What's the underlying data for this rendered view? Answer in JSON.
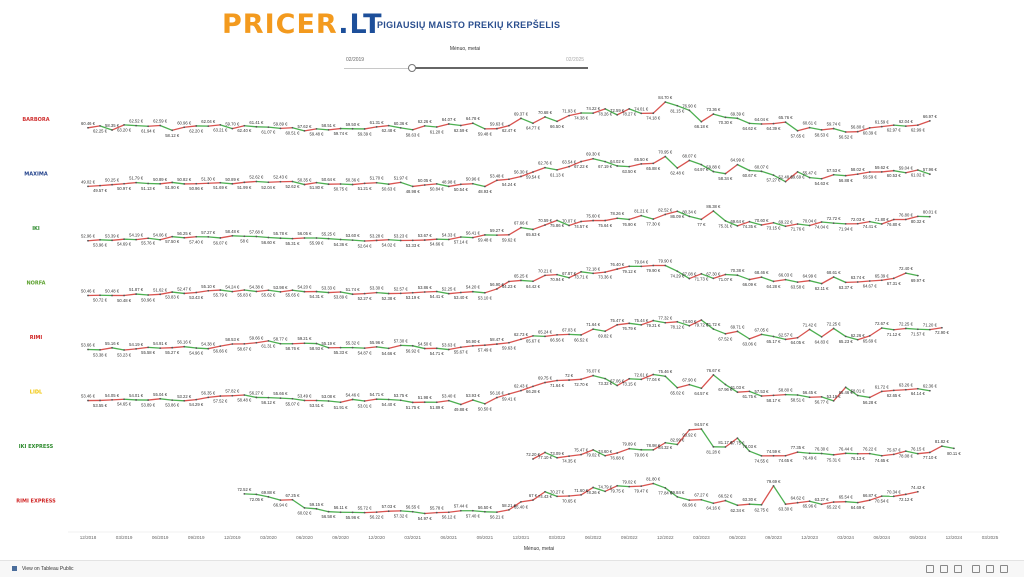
{
  "header": {
    "logo_main": "PRICER",
    "logo_suffix": ".LT",
    "subtitle": "PIGIAUSIŲ MAISTO PREKIŲ KREPŠELIS"
  },
  "filter": {
    "title": "Mėnuo, metai",
    "range_start": "02/2019",
    "range_end": "02/2025",
    "selected_fraction": 0.28
  },
  "footer": {
    "link_text": "View on Tableau Public"
  },
  "chart_data": {
    "type": "line",
    "xlabel": "Mėnuo, metai",
    "x_ticks": [
      "12/2018",
      "03/2019",
      "06/2019",
      "09/2019",
      "12/2019",
      "03/2020",
      "06/2020",
      "09/2020",
      "12/2020",
      "03/2021",
      "06/2021",
      "09/2021",
      "12/2021",
      "03/2022",
      "06/2022",
      "09/2022",
      "12/2022",
      "03/2023",
      "06/2023",
      "09/2023",
      "12/2023",
      "03/2024",
      "06/2024",
      "09/2024",
      "12/2024",
      "03/2025"
    ],
    "x_start": "12/2018",
    "x_end": "03/2025",
    "color_increase": "#d9534f",
    "color_decrease": "#4caf50",
    "series": [
      {
        "name": "BARBORA",
        "label_color": "#d03030",
        "start": "12/2018",
        "values": [
          60.46,
          62.25,
          58.35,
          63.2,
          62.52,
          61.94,
          62.59,
          58.12,
          60.96,
          62.2,
          62.04,
          63.21,
          59.7,
          62.4,
          61.41,
          61.07,
          59.89,
          60.51,
          57.62,
          59.48,
          58.51,
          59.74,
          59.5,
          59.39,
          61.31,
          62.48,
          60.36,
          58.63,
          62.26,
          61.2,
          64.07,
          62.59,
          64.78,
          59.48,
          59.63,
          62.47,
          69.37,
          64.77,
          70.68,
          66.5,
          71.93,
          74.38,
          74.22,
          78.26,
          72.59,
          78.27,
          74.01,
          74.18,
          84.7,
          81.15,
          76.9,
          66.18,
          73.36,
          70.3,
          69.39,
          64.62,
          64.04,
          64.39,
          65.76,
          57.65,
          60.61,
          58.53,
          59.74,
          56.52,
          56.8,
          60.39,
          61.59,
          62.97,
          62.04,
          62.99,
          66.97
        ]
      },
      {
        "name": "MAXIMA",
        "label_color": "#1f3f8a",
        "start": "12/2018",
        "values": [
          49.02,
          49.57,
          50.25,
          50.97,
          51.79,
          51.13,
          50.89,
          51.9,
          50.82,
          50.96,
          51.3,
          51.69,
          50.89,
          51.99,
          52.62,
          52.04,
          52.43,
          52.62,
          50.35,
          51.8,
          50.64,
          50.75,
          50.36,
          51.21,
          51.7,
          50.63,
          51.97,
          48.98,
          50.05,
          50.84,
          48.98,
          50.54,
          50.96,
          48.93,
          53.48,
          54.24,
          56.3,
          59.54,
          62.76,
          61.13,
          63.54,
          67.22,
          69.3,
          67.19,
          64.02,
          63.5,
          65.5,
          65.88,
          70.95,
          62.48,
          68.07,
          64.97,
          59.88,
          58.34,
          64.99,
          60.67,
          60.07,
          57.27,
          52.48,
          59.69,
          55.47,
          54.63,
          57.53,
          56.88,
          58.02,
          59.59,
          59.62,
          60.53,
          59.04,
          61.02,
          57.96
        ]
      },
      {
        "name": "IKI",
        "label_color": "#2e8b2e",
        "start": "12/2018",
        "values": [
          52.96,
          53.96,
          53.39,
          54.69,
          54.19,
          55.76,
          54.06,
          57.5,
          56.25,
          57.4,
          57.27,
          56.07,
          58.48,
          58.0,
          57.68,
          56.6,
          55.78,
          55.31,
          56.05,
          55.99,
          55.25,
          54.36,
          53.6,
          52.64,
          53.28,
          54.02,
          53.23,
          53.33,
          53.67,
          54.66,
          54.33,
          57.14,
          56.41,
          59.48,
          59.27,
          59.62,
          67.66,
          65.63,
          70.59,
          75.86,
          70.07,
          74.57,
          75.6,
          75.64,
          78.26,
          76.9,
          81.21,
          77.3,
          82.52,
          86.09,
          80.34,
          77.0,
          86.38,
          75.31,
          69.64,
          74.35,
          70.6,
          73.15,
          69.22,
          71.76,
          70.04,
          74.04,
          72.72,
          71.94,
          72.03,
          74.41,
          71.8,
          76.8,
          76.8,
          80.32,
          80.01
        ]
      },
      {
        "name": "NORFA",
        "label_color": "#5aa02c",
        "start": "12/2018",
        "values": [
          50.46,
          50.72,
          50.48,
          50.48,
          51.87,
          50.96,
          51.62,
          53.83,
          52.47,
          53.43,
          55.1,
          55.79,
          54.24,
          55.83,
          54.38,
          55.62,
          53.98,
          55.65,
          54.2,
          54.31,
          53.33,
          53.89,
          51.74,
          52.27,
          53.3,
          52.38,
          52.57,
          53.19,
          53.86,
          54.41,
          52.25,
          53.4,
          54.2,
          53.1,
          56.9,
          64.23,
          65.25,
          64.42,
          70.21,
          70.94,
          67.87,
          73.71,
          72.18,
          73.36,
          76.4,
          79.12,
          79.04,
          79.9,
          79.9,
          74.29,
          67.08,
          71.73,
          67.3,
          71.07,
          70.38,
          66.09,
          68.46,
          64.28,
          66.03,
          63.58,
          64.99,
          62.11,
          68.61,
          63.37,
          63.74,
          64.67,
          65.39,
          67.31,
          72.4,
          69.97
        ]
      },
      {
        "name": "RIMI",
        "label_color": "#d02525",
        "start": "12/2018",
        "values": [
          53.66,
          53.38,
          55.16,
          53.23,
          54.19,
          55.58,
          54.91,
          55.27,
          56.16,
          54.96,
          54.38,
          56.66,
          58.53,
          58.67,
          59.66,
          61.31,
          58.77,
          58.76,
          59.21,
          58.93,
          55.19,
          55.33,
          55.32,
          54.87,
          55.96,
          54.66,
          57.3,
          56.92,
          54.5,
          54.71,
          53.63,
          55.67,
          56.9,
          57.49,
          58.47,
          59.63,
          62.73,
          65.67,
          65.24,
          66.56,
          67.03,
          66.52,
          71.64,
          69.82,
          75.47,
          76.79,
          75.44,
          79.21,
          77.32,
          78.12,
          74.6,
          79.72,
          71.72,
          67.52,
          69.71,
          63.06,
          67.05,
          65.17,
          62.57,
          64.05,
          71.42,
          64.83,
          72.25,
          65.23,
          62.26,
          65.69,
          72.67,
          71.12,
          72.25,
          71.57,
          71.2,
          72.9
        ]
      },
      {
        "name": "LIDL",
        "label_color": "#f0c400",
        "start": "12/2018",
        "values": [
          53.46,
          53.55,
          54.05,
          54.65,
          54.01,
          53.89,
          55.04,
          53.86,
          53.22,
          54.29,
          56.35,
          57.52,
          57.82,
          58.48,
          56.27,
          56.12,
          55.66,
          55.07,
          53.49,
          53.51,
          53.08,
          51.91,
          54.46,
          53.01,
          54.71,
          54.4,
          53.75,
          51.75,
          51.98,
          51.89,
          53.4,
          49.88,
          53.93,
          50.5,
          56.16,
          59.41,
          62.43,
          66.28,
          69.75,
          71.64,
          72.0,
          72.7,
          76.07,
          73.32,
          67.06,
          73.15,
          72.61,
          77.04,
          75.46,
          65.02,
          67.9,
          64.57,
          76.67,
          67.96,
          61.03,
          61.75,
          57.53,
          58.17,
          58.8,
          58.51,
          56.45,
          56.77,
          53.19,
          65.46,
          58.01,
          56.28,
          61.72,
          62.65,
          63.26,
          64.14,
          62.36
        ]
      },
      {
        "name": "IKI EXPRESS",
        "label_color": "#2e8b2e",
        "start": "12/2018",
        "values": [
          null,
          null,
          null,
          null,
          null,
          null,
          null,
          null,
          null,
          null,
          null,
          null,
          null,
          null,
          null,
          null,
          null,
          null,
          null,
          null,
          null,
          null,
          null,
          null,
          null,
          null,
          null,
          null,
          null,
          null,
          null,
          null,
          null,
          null,
          null,
          null,
          null,
          72.2,
          77.1,
          73.09,
          74.35,
          75.47,
          79.02,
          74.6,
          76.68,
          79.89,
          79.06,
          78.98,
          84.32,
          82.99,
          93.92,
          94.57,
          81.28,
          81.17,
          87.75,
          78.03,
          74.55,
          74.59,
          74.65,
          77.35,
          76.49,
          76.3,
          75.31,
          76.44,
          76.13,
          76.22,
          74.65,
          75.67,
          78.08,
          76.15,
          77.1,
          81.82,
          80.11
        ]
      },
      {
        "name": "RIMI EXPRESS",
        "label_color": "#d02525",
        "start": "12/2018",
        "values": [
          null,
          null,
          null,
          null,
          null,
          null,
          null,
          null,
          null,
          null,
          null,
          null,
          null,
          72.52,
          72.05,
          69.88,
          66.94,
          67.25,
          60.02,
          59.15,
          56.58,
          56.11,
          55.96,
          55.72,
          56.22,
          57.03,
          57.32,
          56.55,
          54.97,
          55.78,
          56.12,
          57.44,
          57.4,
          56.5,
          56.21,
          58.21,
          65.4,
          67.0,
          74.43,
          70.27,
          70.65,
          71.6,
          78.26,
          74.79,
          79.75,
          79.02,
          79.47,
          81.8,
          77.84,
          69.84,
          66.96,
          67.27,
          64.16,
          66.52,
          62.34,
          63.3,
          62.75,
          79.69,
          63.3,
          64.62,
          65.96,
          63.27,
          65.22,
          65.54,
          64.69,
          66.87,
          70.54,
          70.34,
          72.12,
          74.42
        ]
      }
    ]
  }
}
